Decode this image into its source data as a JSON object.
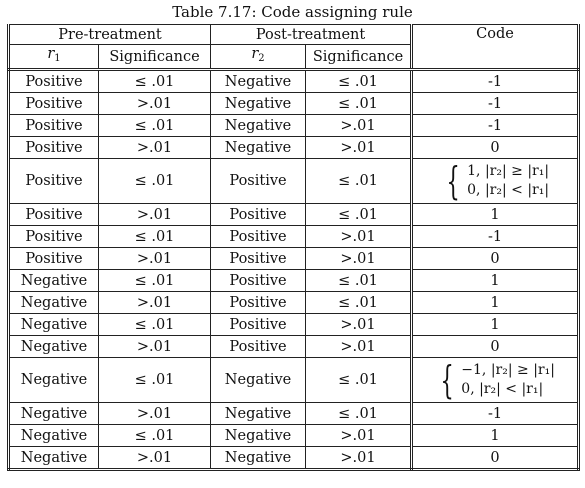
{
  "caption": "Table 7.17: Code assigning rule",
  "headers": {
    "pre": "Pre-treatment",
    "post": "Post-treatment",
    "code": "Code",
    "r1": "r",
    "r1_sub": "1",
    "r2": "r",
    "r2_sub": "2",
    "sig1": "Significance",
    "sig2": "Significance"
  },
  "rows": [
    {
      "r1": "Positive",
      "s1": "≤ .01",
      "r2": "Negative",
      "s2": "≤ .01",
      "code": "-1"
    },
    {
      "r1": "Positive",
      "s1": ">.01",
      "r2": "Negative",
      "s2": "≤ .01",
      "code": "-1"
    },
    {
      "r1": "Positive",
      "s1": "≤ .01",
      "r2": "Negative",
      "s2": ">.01",
      "code": "-1"
    },
    {
      "r1": "Positive",
      "s1": ">.01",
      "r2": "Negative",
      "s2": ">.01",
      "code": "0"
    },
    {
      "r1": "Positive",
      "s1": "≤ .01",
      "r2": "Positive",
      "s2": "≤ .01",
      "code_line1": "1, |r₂| ≥ |r₁|",
      "code_line2": "0, |r₂| < |r₁|"
    },
    {
      "r1": "Positive",
      "s1": ">.01",
      "r2": "Positive",
      "s2": "≤ .01",
      "code": "1"
    },
    {
      "r1": "Positive",
      "s1": "≤ .01",
      "r2": "Positive",
      "s2": ">.01",
      "code": "-1"
    },
    {
      "r1": "Positive",
      "s1": ">.01",
      "r2": "Positive",
      "s2": ">.01",
      "code": "0"
    },
    {
      "r1": "Negative",
      "s1": "≤ .01",
      "r2": "Positive",
      "s2": "≤ .01",
      "code": "1"
    },
    {
      "r1": "Negative",
      "s1": ">.01",
      "r2": "Positive",
      "s2": "≤ .01",
      "code": "1"
    },
    {
      "r1": "Negative",
      "s1": "≤ .01",
      "r2": "Positive",
      "s2": ">.01",
      "code": "1"
    },
    {
      "r1": "Negative",
      "s1": ">.01",
      "r2": "Positive",
      "s2": ">.01",
      "code": "0"
    },
    {
      "r1": "Negative",
      "s1": "≤ .01",
      "r2": "Negative",
      "s2": "≤ .01",
      "code_line1": "−1, |r₂| ≥ |r₁|",
      "code_line2": "0, |r₂| < |r₁|"
    },
    {
      "r1": "Negative",
      "s1": ">.01",
      "r2": "Negative",
      "s2": "≤ .01",
      "code": "-1"
    },
    {
      "r1": "Negative",
      "s1": "≤ .01",
      "r2": "Negative",
      "s2": ">.01",
      "code": "1"
    },
    {
      "r1": "Negative",
      "s1": ">.01",
      "r2": "Negative",
      "s2": ">.01",
      "code": "0"
    }
  ]
}
